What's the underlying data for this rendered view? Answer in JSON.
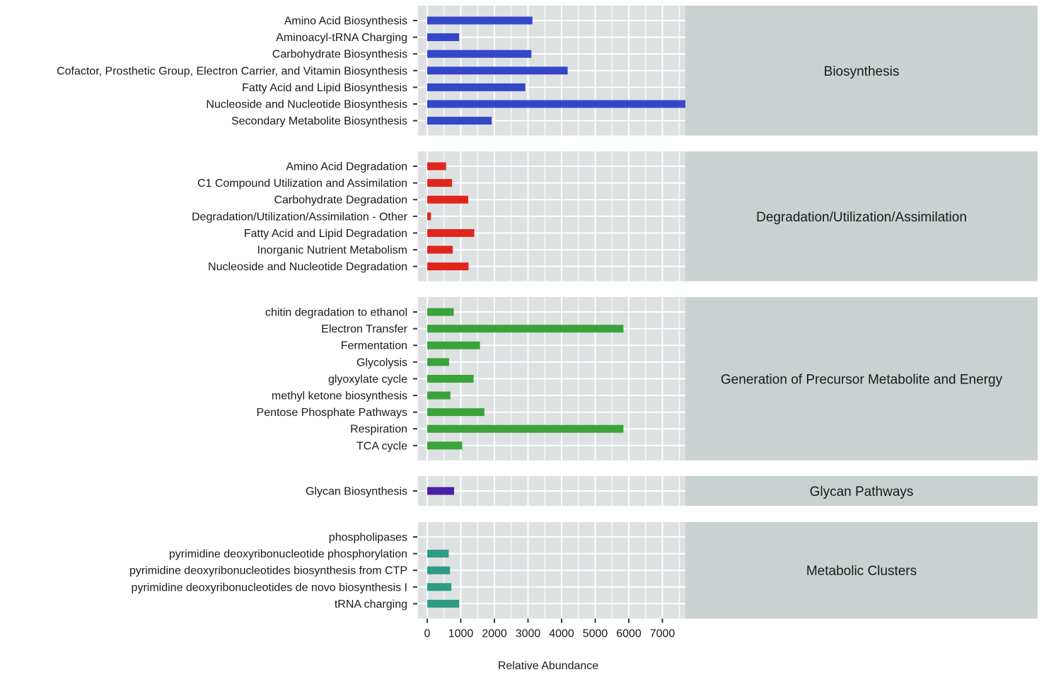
{
  "chart_data": {
    "type": "bar",
    "orientation": "horizontal",
    "xlabel": "Relative Abundance",
    "xlim": [
      0,
      7700
    ],
    "xticks": [
      0,
      1000,
      2000,
      3000,
      4000,
      5000,
      6000,
      7000
    ],
    "grid": true,
    "facets": [
      {
        "name": "Biosynthesis",
        "color": "#3547c8",
        "categories": [
          "Amino Acid Biosynthesis",
          "Aminoacyl-tRNA Charging",
          "Carbohydrate Biosynthesis",
          "Cofactor, Prosthetic Group, Electron Carrier, and Vitamin Biosynthesis",
          "Fatty Acid and Lipid Biosynthesis",
          "Nucleoside and Nucleotide Biosynthesis",
          "Secondary Metabolite Biosynthesis"
        ],
        "values": [
          3130,
          950,
          3100,
          4180,
          2920,
          7700,
          1920
        ]
      },
      {
        "name": "Degradation/Utilization/Assimilation",
        "color": "#e0261c",
        "categories": [
          "Amino Acid Degradation",
          "C1 Compound Utilization and Assimilation",
          "Carbohydrate Degradation",
          "Degradation/Utilization/Assimilation - Other",
          "Fatty Acid and Lipid Degradation",
          "Inorganic Nutrient Metabolism",
          "Nucleoside and Nucleotide Degradation"
        ],
        "values": [
          560,
          740,
          1220,
          110,
          1400,
          760,
          1230
        ]
      },
      {
        "name": "Generation of Precursor Metabolite and Energy",
        "color": "#3aa33a",
        "categories": [
          "chitin degradation to ethanol",
          "Electron Transfer",
          "Fermentation",
          "Glycolysis",
          "glyoxylate cycle",
          "methyl ketone biosynthesis",
          "Pentose Phosphate Pathways",
          "Respiration",
          "TCA cycle"
        ],
        "values": [
          790,
          5840,
          1570,
          650,
          1380,
          690,
          1700,
          5840,
          1040
        ]
      },
      {
        "name": "Glycan Pathways",
        "color": "#4a1fa8",
        "categories": [
          "Glycan Biosynthesis"
        ],
        "values": [
          800
        ]
      },
      {
        "name": "Metabolic Clusters",
        "color": "#2e9c82",
        "categories": [
          "phospholipases",
          "pyrimidine deoxyribonucleotide phosphorylation",
          "pyrimidine deoxyribonucleotides biosynthesis from CTP",
          "pyrimidine deoxyribonucleotides de novo biosynthesis I",
          "tRNA charging"
        ],
        "values": [
          0,
          640,
          680,
          720,
          950
        ]
      }
    ]
  }
}
